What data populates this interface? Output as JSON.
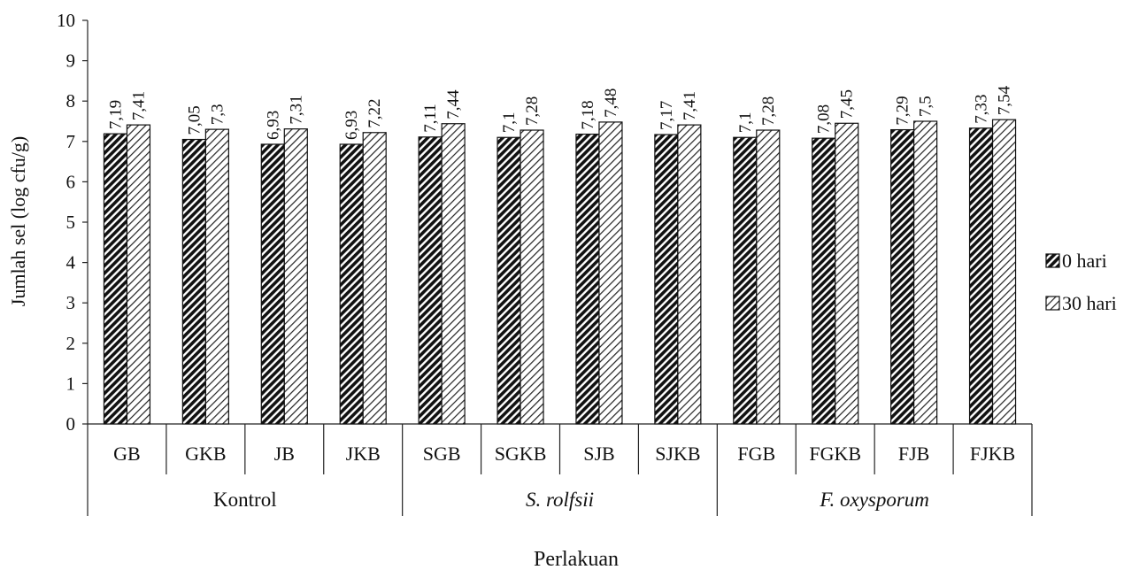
{
  "chart_data": {
    "type": "bar",
    "title": "",
    "xlabel": "Perlakuan",
    "ylabel": "Jumlah sel (log cfu/g)",
    "ylim": [
      0,
      10
    ],
    "yticks": [
      0,
      1,
      2,
      3,
      4,
      5,
      6,
      7,
      8,
      9,
      10
    ],
    "categories": [
      "GB",
      "GKB",
      "JB",
      "JKB",
      "SGB",
      "SGKB",
      "SJB",
      "SJKB",
      "FGB",
      "FGKB",
      "FJB",
      "FJKB"
    ],
    "groups": [
      {
        "label": "Kontrol",
        "italic": false,
        "span": [
          0,
          3
        ]
      },
      {
        "label": "S. rolfsii",
        "italic": true,
        "span": [
          4,
          7
        ]
      },
      {
        "label": "F. oxysporum",
        "italic": true,
        "span": [
          8,
          11
        ]
      }
    ],
    "series": [
      {
        "name": "0 hari",
        "values": [
          7.19,
          7.05,
          6.93,
          6.93,
          7.11,
          7.1,
          7.18,
          7.17,
          7.1,
          7.08,
          7.29,
          7.33
        ],
        "labels": [
          "7,19",
          "7,05",
          "6,93",
          "6,93",
          "7,11",
          "7,1",
          "7,18",
          "7,17",
          "7,1",
          "7,08",
          "7,29",
          "7,33"
        ]
      },
      {
        "name": "30 hari",
        "values": [
          7.41,
          7.3,
          7.31,
          7.22,
          7.44,
          7.28,
          7.48,
          7.41,
          7.28,
          7.45,
          7.5,
          7.54
        ],
        "labels": [
          "7,41",
          "7,3",
          "7,31",
          "7,22",
          "7,44",
          "7,28",
          "7,48",
          "7,41",
          "7,28",
          "7,45",
          "7,5",
          "7,54"
        ]
      }
    ],
    "legend_position": "right",
    "grid": false
  }
}
